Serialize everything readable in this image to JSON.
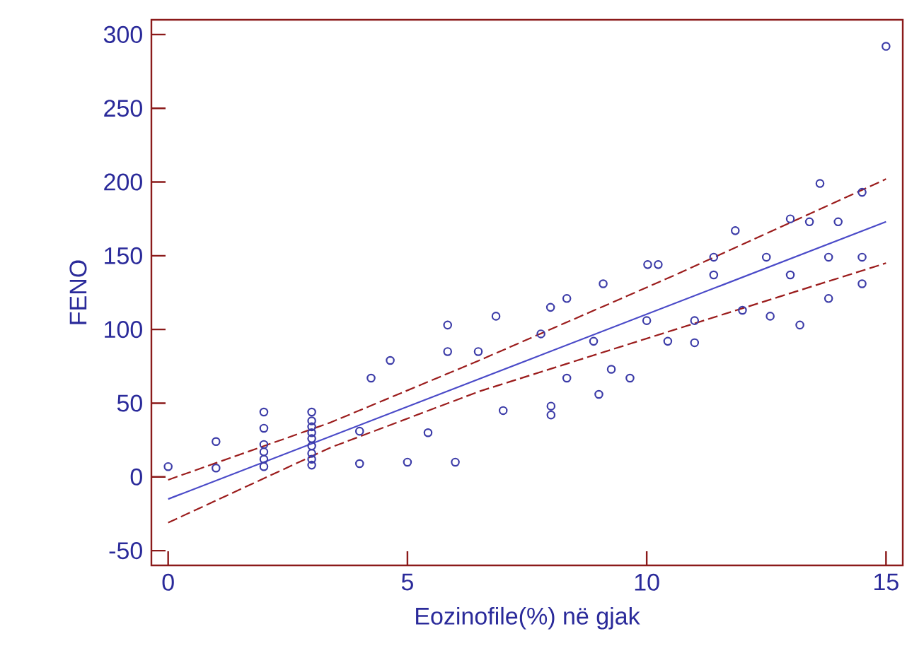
{
  "chart_data": {
    "type": "scatter",
    "xlabel": "Eozinofile(%) në gjak",
    "ylabel": "FENO",
    "xlim": [
      -0.35,
      15.35
    ],
    "ylim": [
      -60,
      310
    ],
    "xticks": [
      0,
      5,
      10,
      15
    ],
    "yticks": [
      -50,
      0,
      50,
      100,
      150,
      200,
      250,
      300
    ],
    "series": [
      {
        "color": "#3c3ca8",
        "marker": "circle",
        "x": [
          0,
          1,
          1,
          2,
          2,
          2,
          2,
          2,
          2,
          3,
          3,
          3,
          3,
          3,
          3,
          3,
          3,
          3,
          4,
          4,
          4.24,
          4.64,
          5,
          5.43,
          6,
          5.84,
          5.84,
          6.48,
          6.85,
          7,
          8,
          8,
          7.79,
          7.99,
          8.33,
          8.33,
          8.89,
          9,
          9.09,
          9.26,
          9.65,
          10.02,
          10.24,
          10,
          10.44,
          11,
          11,
          11.4,
          11.4,
          11.85,
          12,
          12.5,
          12.58,
          13,
          13,
          13.2,
          13.4,
          13.62,
          13.8,
          13.8,
          14,
          14.5,
          14.5,
          14.5,
          15
        ],
        "values": [
          7,
          24,
          6,
          44,
          33,
          22,
          17,
          12,
          7,
          44,
          38,
          34,
          30,
          26,
          21,
          16,
          12,
          8,
          31,
          9,
          67,
          79,
          10,
          30,
          10,
          103,
          85,
          85,
          109,
          45,
          48,
          42,
          97,
          115,
          121,
          67,
          92,
          56,
          131,
          73,
          67,
          144,
          144,
          106,
          92,
          106,
          91,
          149,
          137,
          167,
          113,
          149,
          109,
          137,
          175,
          103,
          173,
          199,
          149,
          121,
          173,
          193,
          149,
          131,
          292
        ]
      },
      {
        "type": "line",
        "color": "#4a4ac8",
        "line_style": "solid",
        "x": [
          0,
          15
        ],
        "values": [
          -15,
          173
        ]
      },
      {
        "type": "line",
        "color": "#9b1c1c",
        "line_style": "dashed",
        "x": [
          0,
          3.4,
          6.5,
          10.6,
          15
        ],
        "values": [
          -2,
          37,
          79,
          137,
          202
        ]
      },
      {
        "type": "line",
        "color": "#9b1c1c",
        "line_style": "dashed",
        "x": [
          0,
          3.4,
          6.5,
          10.6,
          15
        ],
        "values": [
          -31,
          20,
          58,
          100,
          145
        ]
      }
    ]
  }
}
